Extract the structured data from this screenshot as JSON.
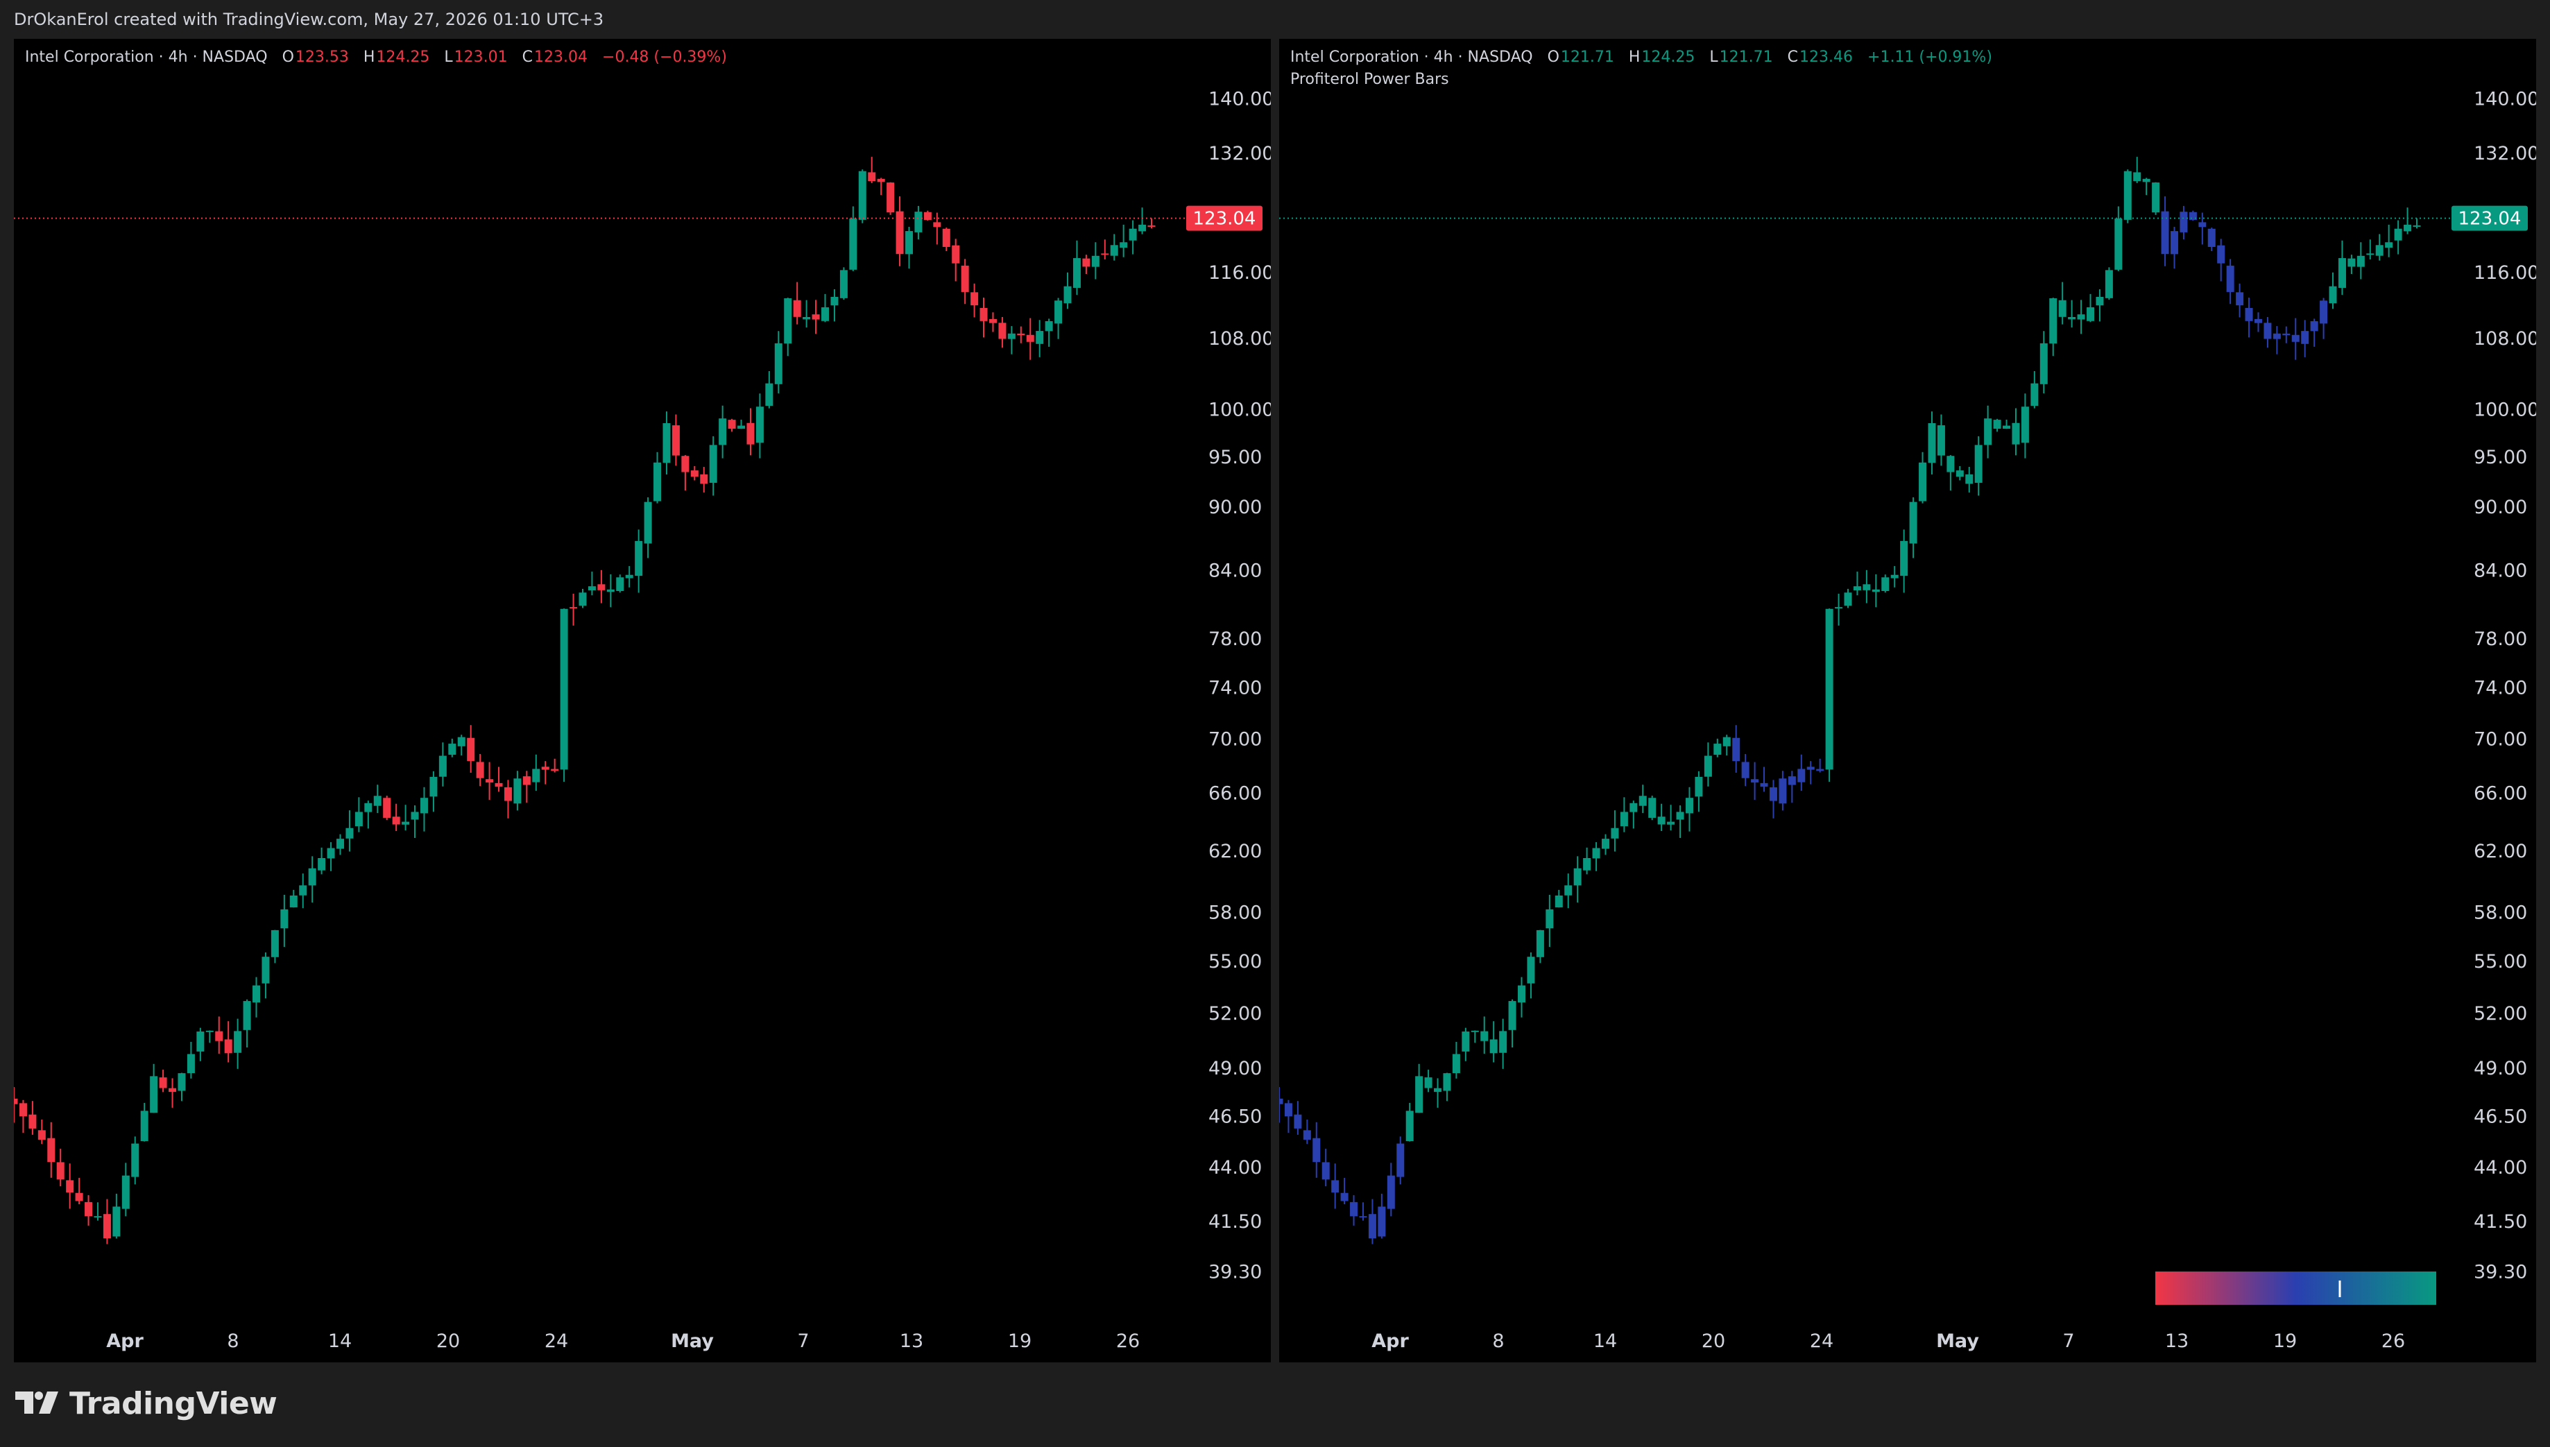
{
  "header": {
    "attribution": "DrOkanErol created with TradingView.com, May 27, 2026 01:10 UTC+3"
  },
  "footer": {
    "brand": "TradingView"
  },
  "colors": {
    "up": "#089981",
    "down": "#f23645",
    "neutral": "#2a3fb0",
    "price_line_left": "#f23645",
    "price_line_right": "#089981"
  },
  "left": {
    "legend": {
      "symbol": "Intel Corporation · 4h · NASDAQ",
      "o": "123.53",
      "h": "124.25",
      "l": "123.01",
      "c": "123.04",
      "change": "−0.48 (−0.39%)"
    },
    "last_price": "123.04"
  },
  "right": {
    "legend": {
      "symbol": "Intel Corporation · 4h · NASDAQ",
      "o": "121.71",
      "h": "124.25",
      "l": "121.71",
      "c": "123.46",
      "change": "+1.11 (+0.91%)"
    },
    "indicator": "Profiterol Power Bars",
    "last_price": "123.04"
  },
  "chart_data": {
    "type": "candlestick",
    "scale": "log",
    "ylim": [
      37.5,
      145
    ],
    "y_ticks": [
      "140.00",
      "132.00",
      "116.00",
      "108.00",
      "100.00",
      "95.00",
      "90.00",
      "84.00",
      "78.00",
      "74.00",
      "70.00",
      "66.00",
      "62.00",
      "58.00",
      "55.00",
      "52.00",
      "49.00",
      "46.50",
      "44.00",
      "41.50",
      "39.30"
    ],
    "x_ticks": [
      "Apr",
      "8",
      "14",
      "20",
      "24",
      "May",
      "7",
      "13",
      "19",
      "26"
    ],
    "anchors": [
      [
        0,
        47
      ],
      [
        4,
        44.5
      ],
      [
        6,
        43
      ],
      [
        8,
        42
      ],
      [
        10,
        40.8
      ],
      [
        13,
        45
      ],
      [
        15,
        48.8
      ],
      [
        17,
        47.5
      ],
      [
        20,
        51
      ],
      [
        23,
        50
      ],
      [
        26,
        54
      ],
      [
        28,
        57
      ],
      [
        31,
        60
      ],
      [
        34,
        62
      ],
      [
        36,
        64
      ],
      [
        39,
        66
      ],
      [
        41,
        63.5
      ],
      [
        44,
        66
      ],
      [
        46,
        69
      ],
      [
        48,
        69.8
      ],
      [
        50,
        67
      ],
      [
        53,
        66
      ],
      [
        56,
        67.5
      ],
      [
        58,
        67.5
      ],
      [
        59,
        80
      ],
      [
        62,
        83
      ],
      [
        64,
        82
      ],
      [
        66,
        84
      ],
      [
        68,
        91
      ],
      [
        70,
        98
      ],
      [
        72,
        93
      ],
      [
        74,
        92
      ],
      [
        76,
        99
      ],
      [
        79,
        97
      ],
      [
        81,
        102
      ],
      [
        83,
        112
      ],
      [
        86,
        110
      ],
      [
        89,
        116
      ],
      [
        91,
        130
      ],
      [
        93,
        128
      ],
      [
        95,
        119
      ],
      [
        97,
        125
      ],
      [
        99,
        121
      ],
      [
        102,
        114
      ],
      [
        104,
        110
      ],
      [
        107,
        108
      ],
      [
        109,
        107
      ],
      [
        110,
        108
      ],
      [
        112,
        113
      ],
      [
        114,
        117
      ],
      [
        117,
        118
      ],
      [
        119,
        120
      ],
      [
        121,
        122
      ],
      [
        122,
        123.04
      ]
    ],
    "power_bars": {
      "legend_gradient": [
        "#f23645",
        "#2a3fb0",
        "#089981"
      ],
      "colored": "neutral near Apr 1 low, mid-April consolidation (Apr 22-24) and May 13-19 pullback; up elsewhere"
    }
  }
}
